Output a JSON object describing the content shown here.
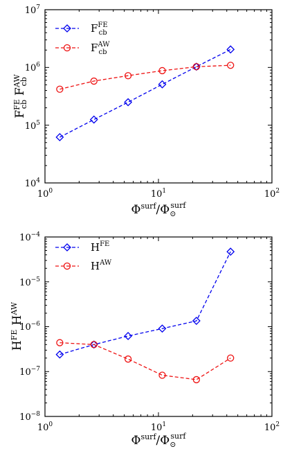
{
  "chart_data": [
    {
      "type": "line",
      "xscale": "log",
      "yscale": "log",
      "xlim": [
        1,
        100
      ],
      "ylim": [
        10000,
        10000000
      ],
      "xlabel": "Φsurf/Φ⊙surf",
      "ylabel": "FcbFE FcbAW",
      "x_ticks": [
        1,
        10,
        100
      ],
      "y_ticks": [
        10000,
        100000,
        1000000,
        10000000
      ],
      "grid": false,
      "legend_position": "top-left",
      "x": [
        1.35,
        2.7,
        5.4,
        10.8,
        21.6,
        43.2
      ],
      "series": [
        {
          "name": "FcbFE",
          "color": "#0000ee",
          "marker": "diamond",
          "values": [
            62000,
            125000,
            250000,
            510000,
            1030000,
            2050000
          ]
        },
        {
          "name": "FcbAW",
          "color": "#ee1111",
          "marker": "circle",
          "values": [
            420000,
            580000,
            720000,
            880000,
            1030000,
            1090000
          ]
        }
      ]
    },
    {
      "type": "line",
      "xscale": "log",
      "yscale": "log",
      "xlim": [
        1,
        100
      ],
      "ylim": [
        1e-08,
        0.0001
      ],
      "xlabel": "Φsurf/Φ⊙surf",
      "ylabel": "HFE HAW",
      "x_ticks": [
        1,
        10,
        100
      ],
      "y_ticks": [
        1e-08,
        1e-07,
        1e-06,
        1e-05,
        0.0001
      ],
      "grid": false,
      "legend_position": "top-left",
      "x": [
        1.35,
        2.7,
        5.4,
        10.8,
        21.6,
        43.2
      ],
      "series": [
        {
          "name": "HFE",
          "color": "#0000ee",
          "marker": "diamond",
          "values": [
            2.4e-07,
            4e-07,
            6.2e-07,
            9.1e-07,
            1.35e-06,
            4.7e-05
          ]
        },
        {
          "name": "HAW",
          "color": "#ee1111",
          "marker": "circle",
          "values": [
            4.4e-07,
            4e-07,
            1.9e-07,
            8.3e-08,
            6.6e-08,
            2e-07
          ]
        }
      ]
    }
  ]
}
